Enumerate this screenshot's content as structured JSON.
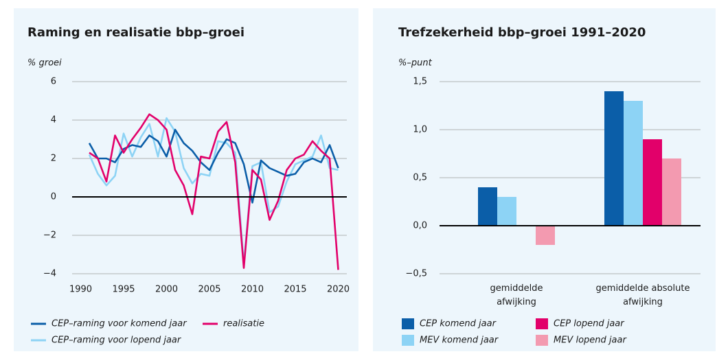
{
  "chart_data": [
    {
      "type": "line",
      "title": "Raming en realisatie bbp–groei",
      "y_label": "% groei",
      "x": [
        1991,
        1992,
        1993,
        1994,
        1995,
        1996,
        1997,
        1998,
        1999,
        2000,
        2001,
        2002,
        2003,
        2004,
        2005,
        2006,
        2007,
        2008,
        2009,
        2010,
        2011,
        2012,
        2013,
        2014,
        2015,
        2016,
        2017,
        2018,
        2019,
        2020
      ],
      "series": [
        {
          "name": "CEP–raming voor lopend jaar",
          "color": "#8dd3f5",
          "values": [
            2.2,
            1.2,
            0.6,
            1.1,
            3.3,
            2.1,
            3.1,
            3.8,
            2.1,
            4.1,
            3.4,
            1.5,
            0.7,
            1.2,
            1.1,
            2.9,
            2.8,
            2.3,
            -3.5,
            1.6,
            1.8,
            -0.8,
            -0.5,
            0.8,
            1.7,
            1.9,
            2.1,
            3.2,
            1.5,
            1.4
          ]
        },
        {
          "name": "CEP–raming voor komend jaar",
          "color": "#0b5ea8",
          "values": [
            2.8,
            2.0,
            2.0,
            1.8,
            2.5,
            2.7,
            2.6,
            3.2,
            2.9,
            2.1,
            3.5,
            2.8,
            2.4,
            1.8,
            1.4,
            2.3,
            3.0,
            2.8,
            1.7,
            -0.3,
            1.9,
            1.5,
            1.3,
            1.1,
            1.2,
            1.8,
            2.0,
            1.8,
            2.7,
            1.5
          ]
        },
        {
          "name": "realisatie",
          "color": "#e2006a",
          "values": [
            2.3,
            2.0,
            0.8,
            3.2,
            2.3,
            3.0,
            3.6,
            4.3,
            4.0,
            3.5,
            1.4,
            0.6,
            -0.9,
            2.1,
            2.0,
            3.4,
            3.9,
            1.8,
            -3.7,
            1.4,
            0.9,
            -1.2,
            -0.2,
            1.4,
            2.0,
            2.2,
            2.9,
            2.4,
            2.0,
            -3.8
          ]
        }
      ],
      "xlim": [
        1989,
        2021
      ],
      "xticks": [
        1990,
        1995,
        2000,
        2005,
        2010,
        2015,
        2020
      ],
      "ylim": [
        -4,
        6
      ],
      "yticks": [
        {
          "value": -4,
          "label": "−4"
        },
        {
          "value": -2,
          "label": "−2"
        },
        0,
        2,
        4,
        6
      ],
      "grid": true
    },
    {
      "type": "bar",
      "title": "Trefzekerheid bbp–groei 1991–2020",
      "y_label": "%–punt",
      "categories": [
        "gemiddelde afwijking",
        "gemiddelde absolute afwijking"
      ],
      "series": [
        {
          "name": "CEP komend jaar",
          "color": "#0b5ea8",
          "values": [
            0.4,
            1.4
          ]
        },
        {
          "name": "MEV komend jaar",
          "color": "#8dd3f5",
          "values": [
            0.3,
            1.3
          ]
        },
        {
          "name": "CEP lopend jaar",
          "color": "#e2006a",
          "values": [
            0.0,
            0.9
          ]
        },
        {
          "name": "MEV lopend jaar",
          "color": "#f39ab0",
          "values": [
            -0.2,
            0.7
          ]
        }
      ],
      "ylim": [
        -0.5,
        1.5
      ],
      "yticks": [
        {
          "value": -0.5,
          "label": "−0,5"
        },
        {
          "value": 0,
          "label": "0,0"
        },
        {
          "value": 0.5,
          "label": "0,5"
        },
        {
          "value": 1,
          "label": "1,0"
        },
        {
          "value": 1.5,
          "label": "1,5"
        }
      ],
      "grid": true
    }
  ]
}
